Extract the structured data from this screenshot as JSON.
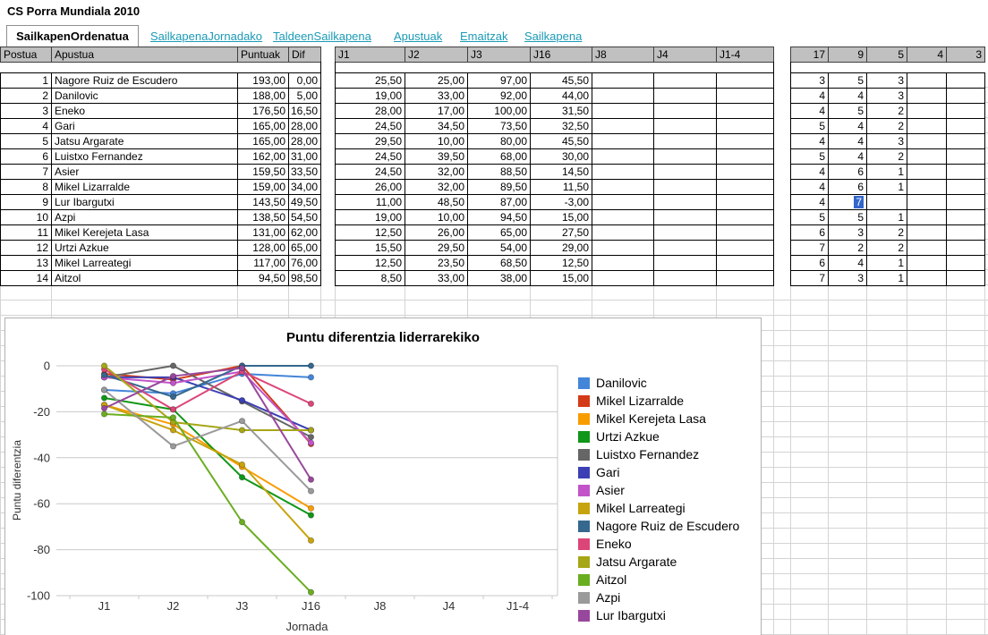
{
  "title": "CS Porra Mundiala 2010",
  "tabs": {
    "active": "SailkapenOrdenatua",
    "links": [
      "SailkapenaJornadako",
      "TaldeenSailkapena",
      "Apustuak",
      "Emaitzak",
      "Sailkapena"
    ]
  },
  "colors": {
    "link": "#1b9ab5",
    "header_bg": "#c0c0c0",
    "grid": "#d4d4d4",
    "chart_grid": "#c9c9c9",
    "selection": "#3366cc"
  },
  "table": {
    "headers": [
      "Postua",
      "Apustua",
      "Puntuak",
      "Dif",
      "J1",
      "J2",
      "J3",
      "J16",
      "J8",
      "J4",
      "J1-4",
      "17",
      "9",
      "5",
      "4",
      "3"
    ],
    "rows": [
      [
        "1",
        "Nagore Ruiz de Escudero",
        "193,00",
        "0,00",
        "25,50",
        "25,00",
        "97,00",
        "45,50",
        "",
        "",
        "",
        "3",
        "5",
        "3",
        "",
        ""
      ],
      [
        "2",
        "Danilovic",
        "188,00",
        "5,00",
        "19,00",
        "33,00",
        "92,00",
        "44,00",
        "",
        "",
        "",
        "4",
        "4",
        "3",
        "",
        ""
      ],
      [
        "3",
        "Eneko",
        "176,50",
        "16,50",
        "28,00",
        "17,00",
        "100,00",
        "31,50",
        "",
        "",
        "",
        "4",
        "5",
        "2",
        "",
        ""
      ],
      [
        "4",
        "Gari",
        "165,00",
        "28,00",
        "24,50",
        "34,50",
        "73,50",
        "32,50",
        "",
        "",
        "",
        "5",
        "4",
        "2",
        "",
        ""
      ],
      [
        "5",
        "Jatsu Argarate",
        "165,00",
        "28,00",
        "29,50",
        "10,00",
        "80,00",
        "45,50",
        "",
        "",
        "",
        "4",
        "4",
        "3",
        "",
        ""
      ],
      [
        "6",
        "Luistxo Fernandez",
        "162,00",
        "31,00",
        "24,50",
        "39,50",
        "68,00",
        "30,00",
        "",
        "",
        "",
        "5",
        "4",
        "2",
        "",
        ""
      ],
      [
        "7",
        "Asier",
        "159,50",
        "33,50",
        "24,50",
        "32,00",
        "88,50",
        "14,50",
        "",
        "",
        "",
        "4",
        "6",
        "1",
        "",
        ""
      ],
      [
        "8",
        "Mikel Lizarralde",
        "159,00",
        "34,00",
        "26,00",
        "32,00",
        "89,50",
        "11,50",
        "",
        "",
        "",
        "4",
        "6",
        "1",
        "",
        ""
      ],
      [
        "9",
        "Lur Ibargutxi",
        "143,50",
        "49,50",
        "11,00",
        "48,50",
        "87,00",
        "-3,00",
        "",
        "",
        "",
        "4",
        "7",
        "",
        "",
        ""
      ],
      [
        "10",
        "Azpi",
        "138,50",
        "54,50",
        "19,00",
        "10,00",
        "94,50",
        "15,00",
        "",
        "",
        "",
        "5",
        "5",
        "1",
        "",
        ""
      ],
      [
        "11",
        "Mikel Kerejeta Lasa",
        "131,00",
        "62,00",
        "12,50",
        "26,00",
        "65,00",
        "27,50",
        "",
        "",
        "",
        "6",
        "3",
        "2",
        "",
        ""
      ],
      [
        "12",
        "Urtzi Azkue",
        "128,00",
        "65,00",
        "15,50",
        "29,50",
        "54,00",
        "29,00",
        "",
        "",
        "",
        "7",
        "2",
        "2",
        "",
        ""
      ],
      [
        "13",
        "Mikel Larreategi",
        "117,00",
        "76,00",
        "12,50",
        "23,50",
        "68,50",
        "12,50",
        "",
        "",
        "",
        "6",
        "4",
        "1",
        "",
        ""
      ],
      [
        "14",
        "Aitzol",
        "94,50",
        "98,50",
        "8,50",
        "33,00",
        "38,00",
        "15,00",
        "",
        "",
        "",
        "7",
        "3",
        "1",
        "",
        ""
      ]
    ],
    "selected_cell": {
      "row_label": "9",
      "column_header": "9",
      "value": "7"
    }
  },
  "chart_data": {
    "type": "line",
    "title": "Puntu diferentzia liderrarekiko",
    "xlabel": "Jornada",
    "ylabel": "Puntu diferentzia",
    "x": [
      "J1",
      "J2",
      "J3",
      "J16",
      "J8",
      "J4",
      "J1-4"
    ],
    "ylim": [
      -100,
      0
    ],
    "yticks": [
      0,
      -20,
      -40,
      -60,
      -80,
      -100
    ],
    "grid": true,
    "legend_position": "right",
    "series": [
      {
        "name": "Danilovic",
        "color": "#4385d8",
        "values": [
          -10.5,
          -12,
          -3.5,
          -5
        ]
      },
      {
        "name": "Mikel Lizarralde",
        "color": "#d33a17",
        "values": [
          -3.5,
          -6,
          0,
          -34
        ]
      },
      {
        "name": "Mikel Kerejeta Lasa",
        "color": "#f99c02",
        "values": [
          -17,
          -25.5,
          -44,
          -62
        ]
      },
      {
        "name": "Urtzi Azkue",
        "color": "#109618",
        "values": [
          -14,
          -19,
          -48.5,
          -65
        ]
      },
      {
        "name": "Luistxo Fernandez",
        "color": "#666666",
        "values": [
          -5,
          0,
          -15.5,
          -31
        ]
      },
      {
        "name": "Gari",
        "color": "#3c40b4",
        "values": [
          -5,
          -5,
          -15,
          -28
        ]
      },
      {
        "name": "Asier",
        "color": "#c353c9",
        "values": [
          -5,
          -7.5,
          -2.5,
          -33.5
        ]
      },
      {
        "name": "Mikel Larreategi",
        "color": "#c7a40d",
        "values": [
          -17,
          -28,
          -43,
          -76
        ]
      },
      {
        "name": "Nagore Ruiz de Escudero",
        "color": "#35688e",
        "values": [
          -4,
          -13.5,
          0,
          0
        ]
      },
      {
        "name": "Eneko",
        "color": "#dc4677",
        "values": [
          -1.5,
          -19,
          -2.5,
          -16.5
        ]
      },
      {
        "name": "Jatsu Argarate",
        "color": "#a6a616",
        "values": [
          0,
          -24.5,
          -28,
          -28
        ]
      },
      {
        "name": "Aitzol",
        "color": "#6aae20",
        "values": [
          -21,
          -22.5,
          -68,
          -98.5
        ]
      },
      {
        "name": "Azpi",
        "color": "#9a9a9a",
        "values": [
          -10.5,
          -35,
          -24,
          -54.5
        ]
      },
      {
        "name": "Lur Ibargutxi",
        "color": "#98489c",
        "values": [
          -18.5,
          -4.5,
          -1,
          -49.5
        ]
      }
    ]
  }
}
